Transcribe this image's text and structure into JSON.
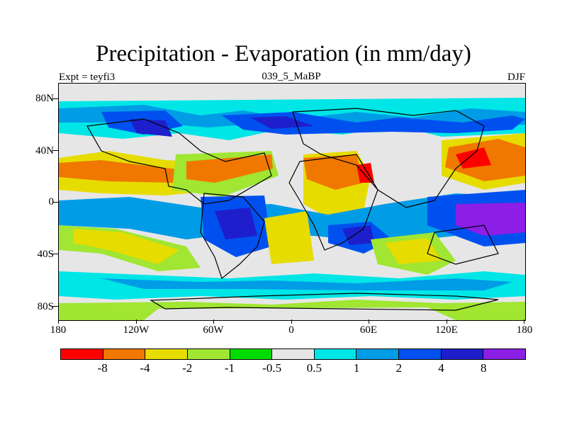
{
  "title": "Precipitation - Evaporation (in mm/day)",
  "subtitle_left": "Expt = teyfi3",
  "subtitle_center": "039_5_MaBP",
  "subtitle_right": "DJF",
  "lat_labels": [
    "80N",
    "40N",
    "0",
    "40S",
    "80S"
  ],
  "lon_labels": [
    "180",
    "120W",
    "60W",
    "0",
    "60E",
    "120E",
    "180"
  ],
  "colorbar": {
    "colors": [
      "#ff0000",
      "#f07800",
      "#e6dc00",
      "#a0e632",
      "#00dc00",
      "#e6e6e6",
      "#00e6e6",
      "#009ce6",
      "#0050f0",
      "#1e1ecd",
      "#8c1ee6"
    ],
    "labels": [
      "-8",
      "-4",
      "-2",
      "-1",
      "-0.5",
      "0.5",
      "1",
      "2",
      "4",
      "8"
    ]
  }
}
